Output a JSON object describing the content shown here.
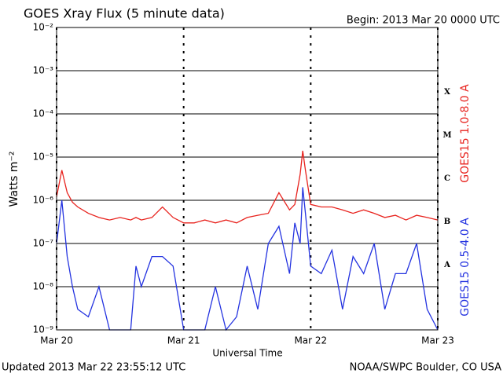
{
  "chart_data": {
    "type": "line",
    "title": "GOES Xray Flux (5 minute data)",
    "subtitle": "Begin:  2013 Mar 20 0000 UTC",
    "xlabel": "Universal Time",
    "ylabel": "Watts m⁻²",
    "footer_left": "Updated 2013 Mar 22 23:55:12 UTC",
    "footer_right": "NOAA/SWPC Boulder, CO USA",
    "log_y": true,
    "grid": true,
    "xlim": [
      0,
      72
    ],
    "xticks": [
      {
        "value": 0,
        "label": "Mar 20"
      },
      {
        "value": 24,
        "label": "Mar 21"
      },
      {
        "value": 48,
        "label": "Mar 22"
      },
      {
        "value": 72,
        "label": "Mar 23"
      }
    ],
    "ylim": [
      1e-09,
      0.01
    ],
    "yticks": [
      {
        "value": 1e-09,
        "label": "10⁻⁹"
      },
      {
        "value": 1e-08,
        "label": "10⁻⁸"
      },
      {
        "value": 1e-07,
        "label": "10⁻⁷"
      },
      {
        "value": 1e-06,
        "label": "10⁻⁶"
      },
      {
        "value": 1e-05,
        "label": "10⁻⁵"
      },
      {
        "value": 0.0001,
        "label": "10⁻⁴"
      },
      {
        "value": 0.001,
        "label": "10⁻³"
      },
      {
        "value": 0.01,
        "label": "10⁻²"
      }
    ],
    "flare_classes": [
      {
        "label": "A",
        "value": 1e-08
      },
      {
        "label": "B",
        "value": 1e-07
      },
      {
        "label": "C",
        "value": 1e-06
      },
      {
        "label": "M",
        "value": 1e-05
      },
      {
        "label": "X",
        "value": 0.0001
      }
    ],
    "x": [
      0,
      1,
      2,
      3,
      4,
      6,
      8,
      10,
      12,
      14,
      15,
      16,
      18,
      20,
      22,
      24,
      26,
      28,
      30,
      32,
      34,
      36,
      38,
      40,
      42,
      44,
      45,
      46,
      46.5,
      47,
      48,
      50,
      52,
      54,
      56,
      58,
      60,
      62,
      64,
      66,
      68,
      70,
      72
    ],
    "series": [
      {
        "name": "GOES15 1.0-8.0 A",
        "color": "#e8231e",
        "values": [
          1.2e-06,
          5e-06,
          1.5e-06,
          9e-07,
          7e-07,
          5e-07,
          4e-07,
          3.5e-07,
          4e-07,
          3.5e-07,
          4e-07,
          3.5e-07,
          4e-07,
          7e-07,
          4e-07,
          3e-07,
          3e-07,
          3.5e-07,
          3e-07,
          3.5e-07,
          3e-07,
          4e-07,
          4.5e-07,
          5e-07,
          1.5e-06,
          6e-07,
          8e-07,
          4e-06,
          1.4e-05,
          5e-06,
          8e-07,
          7e-07,
          7e-07,
          6e-07,
          5e-07,
          6e-07,
          5e-07,
          4e-07,
          4.5e-07,
          3.5e-07,
          4.5e-07,
          4e-07,
          3.5e-07
        ]
      },
      {
        "name": "GOES15 0.5-4.0 A",
        "color": "#2433e0",
        "values": [
          1e-07,
          1e-06,
          5e-08,
          1e-08,
          3e-09,
          2e-09,
          1e-08,
          1e-09,
          1e-09,
          1e-09,
          3e-08,
          1e-08,
          5e-08,
          5e-08,
          3e-08,
          1e-09,
          1e-09,
          1e-09,
          1e-08,
          1e-09,
          2e-09,
          3e-08,
          3e-09,
          1e-07,
          2.5e-07,
          2e-08,
          3e-07,
          1e-07,
          2e-06,
          5e-07,
          3e-08,
          2e-08,
          7e-08,
          3e-09,
          5e-08,
          2e-08,
          1e-07,
          3e-09,
          2e-08,
          2e-08,
          1e-07,
          3e-09,
          1e-09
        ]
      }
    ]
  }
}
